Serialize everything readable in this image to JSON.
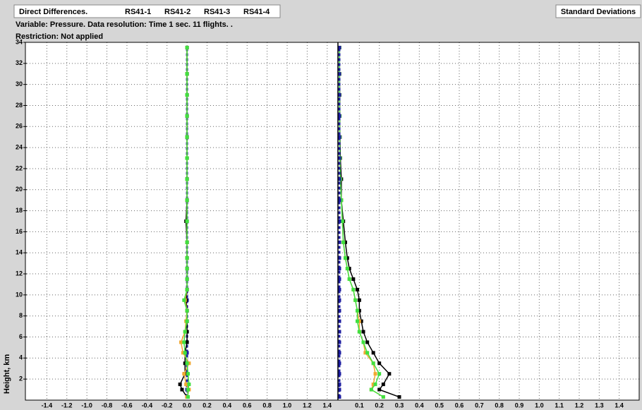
{
  "chart_data": [
    {
      "type": "line",
      "title": "Direct Differences.",
      "subtitle": "Variable: Pressure. Data resolution: Time 1 sec. 11 flights. .",
      "note": "Restriction: Not applied",
      "ylabel": "Height, km",
      "xlim": [
        -1.6,
        1.5
      ],
      "xticks": [
        -1.4,
        -1.2,
        {
          "value": -1,
          "label": "-1.0"
        },
        -0.8,
        -0.6,
        -0.4,
        -0.2,
        {
          "value": 0,
          "label": "0.0"
        },
        0.2,
        0.4,
        0.6,
        0.8,
        {
          "value": 1,
          "label": "1.0"
        },
        1.2,
        1.4
      ],
      "ylim": [
        0,
        34
      ],
      "yticks": [
        2,
        4,
        6,
        8,
        10,
        12,
        14,
        16,
        18,
        20,
        22,
        24,
        26,
        28,
        30,
        32,
        34
      ],
      "grid": true,
      "y": [
        0.3,
        1,
        1.5,
        2.5,
        3.5,
        4.5,
        5.5,
        6.5,
        7.5,
        8.5,
        9.5,
        10.5,
        11.5,
        12.5,
        13.5,
        15,
        17,
        19,
        21,
        23,
        25,
        27,
        29,
        31,
        33.5
      ],
      "series": [
        {
          "name": "RS41-1",
          "color": "#1c1ca0",
          "values": [
            0,
            0,
            0,
            0,
            0,
            0,
            0,
            0,
            0,
            0,
            0,
            0,
            0,
            0,
            0,
            0,
            0,
            0,
            0,
            0,
            0,
            0,
            0,
            0,
            0
          ]
        },
        {
          "name": "RS41-2",
          "color": "#000000",
          "values": [
            0,
            -0.05,
            -0.07,
            -0.02,
            -0.02,
            -0.02,
            0,
            0,
            0,
            0,
            -0.01,
            0,
            0,
            0,
            0,
            0,
            -0.01,
            0,
            0,
            0,
            0,
            0,
            0,
            0,
            0
          ]
        },
        {
          "name": "RS41-3",
          "color": "#f0a830",
          "values": [
            0,
            0.02,
            -0.01,
            -0.03,
            0.02,
            -0.04,
            -0.06,
            -0.02,
            -0.01,
            0,
            -0.02,
            0,
            0,
            0,
            0,
            0,
            0,
            0,
            0,
            0,
            0,
            0,
            0,
            0,
            0
          ]
        },
        {
          "name": "RS41-4",
          "color": "#40e040",
          "values": [
            0.01,
            0.01,
            0.02,
            0.01,
            0,
            -0.02,
            -0.03,
            -0.02,
            0,
            0,
            -0.03,
            0,
            0,
            0,
            0,
            0,
            0,
            0,
            0,
            0,
            0,
            0,
            0,
            0,
            0
          ]
        }
      ]
    },
    {
      "type": "line",
      "title": "Standard Deviations",
      "xlim": [
        0,
        1.5
      ],
      "xticks": [
        0.1,
        0.2,
        0.3,
        0.4,
        0.5,
        0.6,
        0.7,
        0.8,
        0.9,
        {
          "value": 1,
          "label": "1.0"
        },
        1.1,
        1.2,
        1.3,
        1.4
      ],
      "ylim": [
        0,
        34
      ],
      "yticks": [
        2,
        4,
        6,
        8,
        10,
        12,
        14,
        16,
        18,
        20,
        22,
        24,
        26,
        28,
        30,
        32,
        34
      ],
      "grid": true,
      "y": [
        0.3,
        1,
        1.5,
        2.5,
        3.5,
        4.5,
        5.5,
        6.5,
        7.5,
        8.5,
        9.5,
        10.5,
        11.5,
        12.5,
        13.5,
        15,
        17,
        19,
        21,
        23,
        25,
        27,
        29,
        31,
        33.5
      ],
      "series": [
        {
          "color": "#000000",
          "values": [
            0.3,
            0.2,
            0.22,
            0.25,
            0.2,
            0.17,
            0.14,
            0.12,
            0.11,
            0.1,
            0.1,
            0.09,
            0.07,
            0.05,
            0.04,
            0.03,
            0.02,
            0.01,
            0.01,
            0.005,
            0.003,
            0.002,
            0.002,
            0.001,
            0.001
          ]
        },
        {
          "color": "#f0a830",
          "values": [
            0.22,
            0.16,
            0.17,
            0.18,
            0.17,
            0.13,
            0.12,
            0.1,
            0.1,
            0.09,
            0.08,
            0.07,
            0.05,
            0.04,
            0.03,
            0.02,
            0.015,
            0.01,
            0.005,
            0.003,
            0.002,
            0.002,
            0.001,
            0.001,
            0.001
          ]
        },
        {
          "color": "#40e040",
          "values": [
            0.22,
            0.16,
            0.18,
            0.2,
            0.17,
            0.14,
            0.12,
            0.1,
            0.09,
            0.09,
            0.08,
            0.07,
            0.05,
            0.04,
            0.03,
            0.02,
            0.015,
            0.01,
            0.005,
            0.003,
            0.002,
            0.002,
            0.001,
            0.001,
            0.001
          ]
        },
        {
          "color": "#1c1ca0",
          "values": [
            0,
            0,
            0,
            0,
            0,
            0,
            0,
            0,
            0,
            0,
            0,
            0,
            0,
            0,
            0,
            0,
            0,
            0,
            0,
            0,
            0,
            0,
            0,
            0,
            0
          ]
        }
      ]
    }
  ]
}
